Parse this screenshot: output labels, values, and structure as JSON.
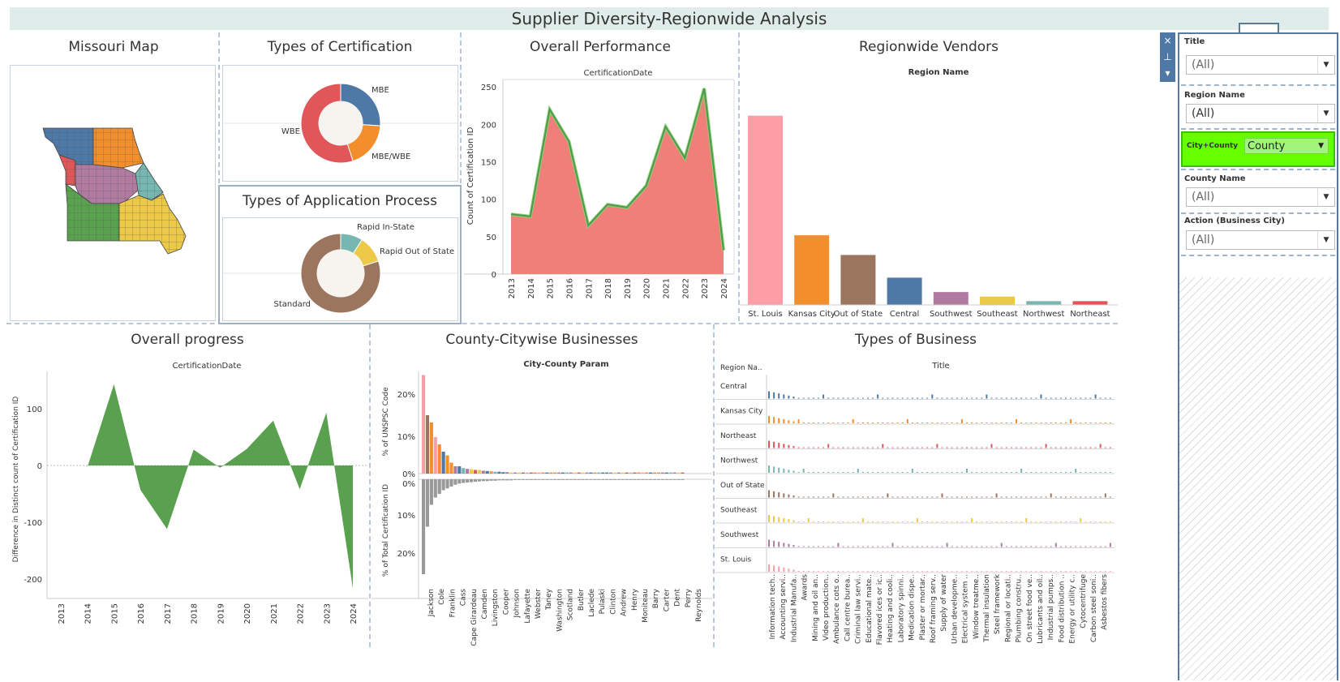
{
  "header": {
    "title": "Supplier Diversity-Regionwide Analysis"
  },
  "panels": {
    "map_title": "Missouri Map",
    "cert_title": "Types of Certification",
    "app_title": "Types of Application Process",
    "perf_title": "Overall Performance",
    "vendors_title": "Regionwide Vendors",
    "progress_title": "Overall progress",
    "county_title": "County-Citywise Businesses",
    "business_title": "Types of Business"
  },
  "certification_donut": {
    "slices": [
      {
        "label": "MBE",
        "fraction": 0.26,
        "color": "#4e79a7"
      },
      {
        "label": "MBE/WBE",
        "fraction": 0.19,
        "color": "#f28e2b"
      },
      {
        "label": "WBE",
        "fraction": 0.55,
        "color": "#e15759"
      }
    ]
  },
  "application_donut": {
    "slices": [
      {
        "label": "Rapid In-State",
        "fraction": 0.09,
        "color": "#76b7b2"
      },
      {
        "label": "Rapid Out of State",
        "fraction": 0.11,
        "color": "#edc948"
      },
      {
        "label": "Standard",
        "fraction": 0.8,
        "color": "#9c755f"
      }
    ]
  },
  "chart_data": [
    {
      "type": "area",
      "title": "Overall Performance",
      "header": "CertificationDate",
      "ylabel": "Count of Certification ID",
      "x": [
        "2013",
        "2014",
        "2015",
        "2016",
        "2017",
        "2018",
        "2019",
        "2020",
        "2021",
        "2022",
        "2023",
        "2024"
      ],
      "values": [
        80,
        77,
        220,
        177,
        65,
        93,
        89,
        118,
        197,
        155,
        248,
        32
      ],
      "ylim": [
        0,
        260
      ],
      "yticks": [
        0,
        50,
        100,
        150,
        200,
        250
      ],
      "fill": "#f07f7a",
      "line": "#4f9a4a"
    },
    {
      "type": "bar",
      "title": "Regionwide Vendors",
      "header": "Region Name",
      "categories": [
        "St. Louis",
        "Kansas City",
        "Out of State",
        "Central",
        "Southwest",
        "Southeast",
        "Northwest",
        "Northeast"
      ],
      "values": [
        250,
        92,
        66,
        36,
        17,
        11,
        5,
        5
      ],
      "colors": [
        "#ff9da7",
        "#f28e2b",
        "#9c755f",
        "#4e79a7",
        "#b07aa1",
        "#edc948",
        "#76b7b2",
        "#e15759"
      ],
      "ylim": [
        0,
        255
      ]
    },
    {
      "type": "area",
      "title": "Overall progress",
      "header": "CertificationDate",
      "ylabel": "Difference in Distinct count of Certification ID",
      "x": [
        "2013",
        "2014",
        "2015",
        "2016",
        "2017",
        "2018",
        "2019",
        "2020",
        "2021",
        "2022",
        "2023",
        "2024"
      ],
      "values": [
        null,
        -3,
        143,
        -43,
        -112,
        28,
        -4,
        29,
        79,
        -42,
        93,
        -216
      ],
      "ylim": [
        -230,
        160
      ],
      "yticks": [
        100,
        0,
        -100,
        -200
      ],
      "fill": "#59a14f"
    },
    {
      "type": "bar",
      "title": "County-Citywise Businesses",
      "header": "City-County Param",
      "top_axis_label": "% of UNSPSC Code",
      "bottom_axis_label": "% of Total Certification ID",
      "top_ticks": [
        "20%",
        "10%",
        "0%"
      ],
      "bottom_ticks": [
        "0%",
        "10%",
        "20%"
      ],
      "categories": [
        "Jackson",
        "Cole",
        "Franklin",
        "Cass",
        "Cape Girardeau",
        "Camden",
        "Livingston",
        "Cooper",
        "Johnson",
        "Lafayette",
        "Webster",
        "Taney",
        "Washington",
        "Scotland",
        "Butler",
        "Laclede",
        "Pulaski",
        "Clinton",
        "Andrew",
        "Henry",
        "Moniteau",
        "Barry",
        "Carter",
        "Dent",
        "Perry",
        "Reynolds"
      ],
      "top_values": [
        27,
        16,
        14,
        10,
        8,
        6,
        5,
        3,
        2,
        2,
        1.5,
        1.3,
        1.2,
        1,
        1,
        0.8,
        0.7,
        0.6,
        0.5,
        0.5,
        0.4,
        0.4,
        0.3,
        0.3,
        0.3,
        0.3
      ],
      "bottom_values": [
        26,
        13,
        7,
        5,
        4,
        3,
        2.5,
        2,
        1.5,
        1.2,
        1,
        0.9,
        0.8,
        0.7,
        0.6,
        0.5,
        0.5,
        0.4,
        0.4,
        0.3,
        0.3,
        0.3,
        0.3,
        0.2,
        0.2,
        0.2
      ],
      "top_colors": [
        "#ff9da7",
        "#9c755f",
        "#f28e2b",
        "#ff9da7",
        "#f28e2b",
        "#4e79a7",
        "#f28e2b",
        "#f28e2b",
        "#b07aa1",
        "#4e79a7",
        "#76b7b2",
        "#b07aa1",
        "#edc948",
        "#e15759",
        "#edc948",
        "#b07aa1",
        "#4e79a7",
        "#f28e2b",
        "#76b7b2",
        "#4e79a7",
        "#4e79a7",
        "#b07aa1",
        "#edc948",
        "#b07aa1",
        "#edc948",
        "#9c755f"
      ]
    },
    {
      "type": "bar",
      "title": "Types of Business",
      "header": "Title",
      "row_header": "Region Na..",
      "rows": [
        {
          "label": "Central",
          "color": "#4e79a7"
        },
        {
          "label": "Kansas City",
          "color": "#f28e2b"
        },
        {
          "label": "Northeast",
          "color": "#e15759"
        },
        {
          "label": "Northwest",
          "color": "#76b7b2"
        },
        {
          "label": "Out of State",
          "color": "#9c755f"
        },
        {
          "label": "Southeast",
          "color": "#edc948"
        },
        {
          "label": "Southwest",
          "color": "#b07aa1"
        },
        {
          "label": "St. Louis",
          "color": "#ff9da7"
        }
      ],
      "categories": [
        "Information tech..",
        "Accounting servi..",
        "Industrial Manufa..",
        "Awards",
        "Mining and oil an..",
        "Video production..",
        "Ambulance cots o..",
        "Call centre burea..",
        "Criminal law servi..",
        "Educational mate..",
        "Flavored ices or ic..",
        "Heating and cooli..",
        "Laboratory spinni..",
        "Medication dispe..",
        "Plaster or mortar..",
        "Roof framing serv..",
        "Supply of water",
        "Urban developme..",
        "Electrical system ..",
        "Window treatme..",
        "Thermal insulation",
        "Steel framework",
        "Regional or locati..",
        "Plumbing constru..",
        "On street food ve..",
        "Lubricants and oil..",
        "Industrial pumps..",
        "Food distribution ..",
        "Energy or utility c..",
        "Cytocentrifuge",
        "Carbon steel soni..",
        "Asbestos fibers"
      ]
    }
  ],
  "map": {
    "region_colors": [
      "#4e79a7",
      "#f28e2b",
      "#e15759",
      "#b07aa1",
      "#76b7b2",
      "#59a14f",
      "#edc948"
    ]
  },
  "filters": {
    "title_label": "Title",
    "title_value": "(All)",
    "region_label": "Region Name",
    "region_value": "(All)",
    "param_label": "City+County",
    "param_value": "County",
    "county_label": "County Name",
    "county_value": "(All)",
    "action_label": "Action (Business City)",
    "action_value": "(All)"
  },
  "controls": {
    "close_icon": "×",
    "pin_icon": "⊥",
    "more_icon": "▾"
  }
}
